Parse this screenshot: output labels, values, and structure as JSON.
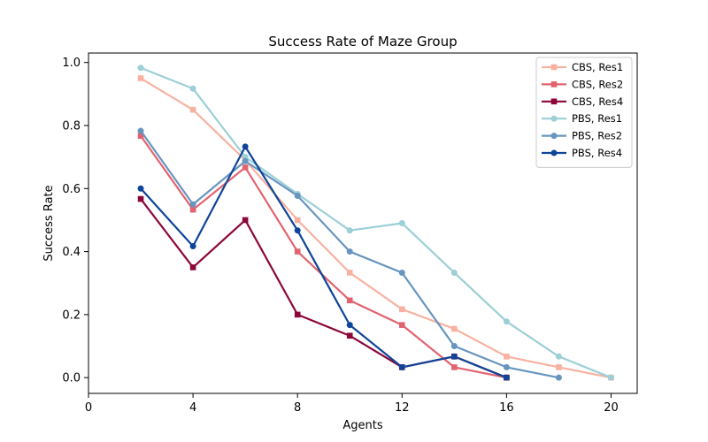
{
  "chart_data": {
    "type": "line",
    "title": "Success Rate of Maze Group",
    "xlabel": "Agents",
    "ylabel": "Success Rate",
    "xlim": [
      0,
      21
    ],
    "ylim": [
      -0.05,
      1.03
    ],
    "xticks": [
      0,
      4,
      8,
      12,
      16,
      20
    ],
    "yticks": [
      0.0,
      0.2,
      0.4,
      0.6,
      0.8,
      1.0
    ],
    "grid": false,
    "legend_position": "top-right",
    "series": [
      {
        "name": "CBS, Res1",
        "color": "#f8b1a1",
        "marker": "square",
        "x": [
          2,
          4,
          6,
          8,
          10,
          12,
          14,
          16,
          18,
          20
        ],
        "y": [
          0.95,
          0.85,
          0.69,
          0.5,
          0.333,
          0.217,
          0.155,
          0.067,
          0.033,
          0.0
        ]
      },
      {
        "name": "CBS, Res2",
        "color": "#e2636f",
        "marker": "square",
        "x": [
          2,
          4,
          6,
          8,
          10,
          12,
          14,
          16
        ],
        "y": [
          0.767,
          0.533,
          0.667,
          0.4,
          0.245,
          0.167,
          0.033,
          0.0
        ]
      },
      {
        "name": "CBS, Res4",
        "color": "#8b0739",
        "marker": "square",
        "x": [
          2,
          4,
          6,
          8,
          10,
          12,
          14,
          16
        ],
        "y": [
          0.567,
          0.35,
          0.5,
          0.2,
          0.133,
          0.033,
          0.067,
          0.0
        ]
      },
      {
        "name": "PBS, Res1",
        "color": "#9ccfd6",
        "marker": "circle",
        "x": [
          2,
          4,
          6,
          8,
          10,
          12,
          14,
          16,
          18,
          20
        ],
        "y": [
          0.983,
          0.917,
          0.7,
          0.583,
          0.467,
          0.49,
          0.333,
          0.178,
          0.067,
          0.0
        ]
      },
      {
        "name": "PBS, Res2",
        "color": "#6795bf",
        "marker": "circle",
        "x": [
          2,
          4,
          6,
          8,
          10,
          12,
          14,
          16,
          18
        ],
        "y": [
          0.783,
          0.55,
          0.687,
          0.577,
          0.4,
          0.333,
          0.1,
          0.033,
          0.0
        ]
      },
      {
        "name": "PBS, Res4",
        "color": "#0f4598",
        "marker": "circle",
        "x": [
          2,
          4,
          6,
          8,
          10,
          12,
          14,
          16
        ],
        "y": [
          0.6,
          0.417,
          0.733,
          0.467,
          0.167,
          0.033,
          0.067,
          0.0
        ]
      }
    ]
  }
}
